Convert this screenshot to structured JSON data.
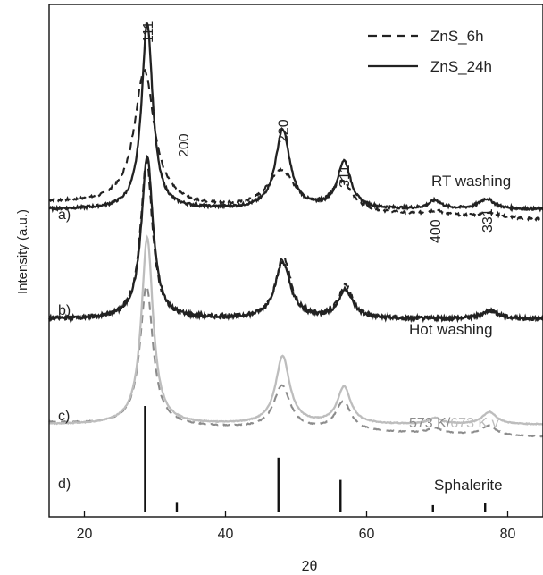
{
  "chart_data": {
    "type": "line",
    "xlabel": "2θ",
    "ylabel": "Intensity (a.u.)",
    "xlim": [
      15,
      85
    ],
    "x_ticks": [
      "20",
      "40",
      "60",
      "80"
    ],
    "x_tick_values": [
      20,
      40,
      60,
      80
    ],
    "y_ticks_shown": false,
    "legend": {
      "placement": "top-right",
      "entries": [
        {
          "label": "ZnS_6h",
          "style": "dashed",
          "color": "#222222"
        },
        {
          "label": "ZnS_24h",
          "style": "solid",
          "color": "#222222"
        }
      ]
    },
    "peak_labels": [
      {
        "label": "111",
        "x": 28.9
      },
      {
        "label": "200",
        "x": 33.1
      },
      {
        "label": "220",
        "x": 48.1
      },
      {
        "label": "311",
        "x": 56.8
      },
      {
        "label": "400",
        "x": 69.7
      },
      {
        "label": "331",
        "x": 77.0
      }
    ],
    "panels": [
      {
        "label": "a)",
        "name": "RT washing",
        "name_color": "#222222",
        "offset": 3.0,
        "noise": 0.012,
        "series": [
          {
            "legend": "ZnS_6h",
            "style": "dashed",
            "color": "#222222",
            "offset_extra": 0.0,
            "baseline_start": 0.07,
            "baseline_end": -0.1,
            "peaks": [
              {
                "x": 28.5,
                "h": 1.32,
                "w": 3.4
              },
              {
                "x": 47.9,
                "h": 0.38,
                "w": 4.6
              },
              {
                "x": 56.5,
                "h": 0.28,
                "w": 3.5
              },
              {
                "x": 69.8,
                "h": 0.04,
                "w": 3
              },
              {
                "x": 77.2,
                "h": 0.05,
                "w": 3
              }
            ]
          },
          {
            "legend": "ZnS_24h",
            "style": "solid",
            "color": "#222222",
            "offset_extra": 0.0,
            "baseline_start": 0.0,
            "baseline_end": 0.0,
            "peaks": [
              {
                "x": 28.9,
                "h": 1.82,
                "w": 1.9
              },
              {
                "x": 48.1,
                "h": 0.77,
                "w": 2.5
              },
              {
                "x": 56.8,
                "h": 0.46,
                "w": 2.3
              },
              {
                "x": 69.7,
                "h": 0.08,
                "w": 2.2
              },
              {
                "x": 77.0,
                "h": 0.1,
                "w": 2.6
              }
            ]
          }
        ]
      },
      {
        "label": "b)",
        "name": "Hot washing",
        "name_color": "#222222",
        "offset": 1.93,
        "noise": 0.018,
        "series": [
          {
            "legend": "ZnS_6h",
            "style": "dashed",
            "color": "#222222",
            "offset_extra": 0.0,
            "baseline_start": 0.0,
            "baseline_end": 0.0,
            "peaks": [
              {
                "x": 28.8,
                "h": 1.55,
                "w": 2.0
              },
              {
                "x": 48.2,
                "h": 0.6,
                "w": 2.6
              },
              {
                "x": 57.0,
                "h": 0.32,
                "w": 2.4
              },
              {
                "x": 77.5,
                "h": 0.08,
                "w": 2.8
              }
            ]
          },
          {
            "legend": "ZnS_24h",
            "style": "solid",
            "color": "#222222",
            "offset_extra": 0.0,
            "baseline_start": 0.0,
            "baseline_end": 0.0,
            "peaks": [
              {
                "x": 28.9,
                "h": 1.58,
                "w": 2.0
              },
              {
                "x": 48.1,
                "h": 0.55,
                "w": 2.6
              },
              {
                "x": 57.0,
                "h": 0.28,
                "w": 2.4
              },
              {
                "x": 77.5,
                "h": 0.08,
                "w": 2.8
              }
            ]
          }
        ]
      },
      {
        "label": "c)",
        "name": "573 K/673 K v",
        "name_parts": [
          {
            "text": "573 K/",
            "color": "#8c8c8c"
          },
          {
            "text": "673 K v",
            "color": "#bdbdbd"
          }
        ],
        "offset": 0.9,
        "noise": 0.004,
        "series": [
          {
            "legend": "573 K",
            "style": "dashed",
            "color": "#8c8c8c",
            "offset_extra": 0.0,
            "baseline_start": 0.02,
            "baseline_end": -0.12,
            "peaks": [
              {
                "x": 28.8,
                "h": 1.36,
                "w": 2.2
              },
              {
                "x": 48.0,
                "h": 0.42,
                "w": 2.8
              },
              {
                "x": 56.7,
                "h": 0.28,
                "w": 2.6
              },
              {
                "x": 69.7,
                "h": 0.05,
                "w": 2.4
              },
              {
                "x": 77.3,
                "h": 0.09,
                "w": 2.6
              }
            ]
          },
          {
            "legend": "673 K",
            "style": "solid",
            "color": "#bdbdbd",
            "offset_extra": 0.0,
            "baseline_start": 0.0,
            "baseline_end": 0.0,
            "peaks": [
              {
                "x": 28.9,
                "h": 1.82,
                "w": 2.0
              },
              {
                "x": 48.1,
                "h": 0.66,
                "w": 2.4
              },
              {
                "x": 56.8,
                "h": 0.36,
                "w": 2.3
              },
              {
                "x": 69.7,
                "h": 0.06,
                "w": 2.2
              },
              {
                "x": 77.4,
                "h": 0.12,
                "w": 2.5
              }
            ]
          }
        ]
      },
      {
        "label": "d)",
        "name": "Sphalerite",
        "name_color": "#222222",
        "type": "reference"
      }
    ],
    "reference_lines": [
      {
        "x": 28.6,
        "intensity": 100
      },
      {
        "x": 33.1,
        "intensity": 9
      },
      {
        "x": 47.5,
        "intensity": 51
      },
      {
        "x": 56.3,
        "intensity": 30
      },
      {
        "x": 69.4,
        "intensity": 6
      },
      {
        "x": 76.8,
        "intensity": 8
      }
    ]
  }
}
